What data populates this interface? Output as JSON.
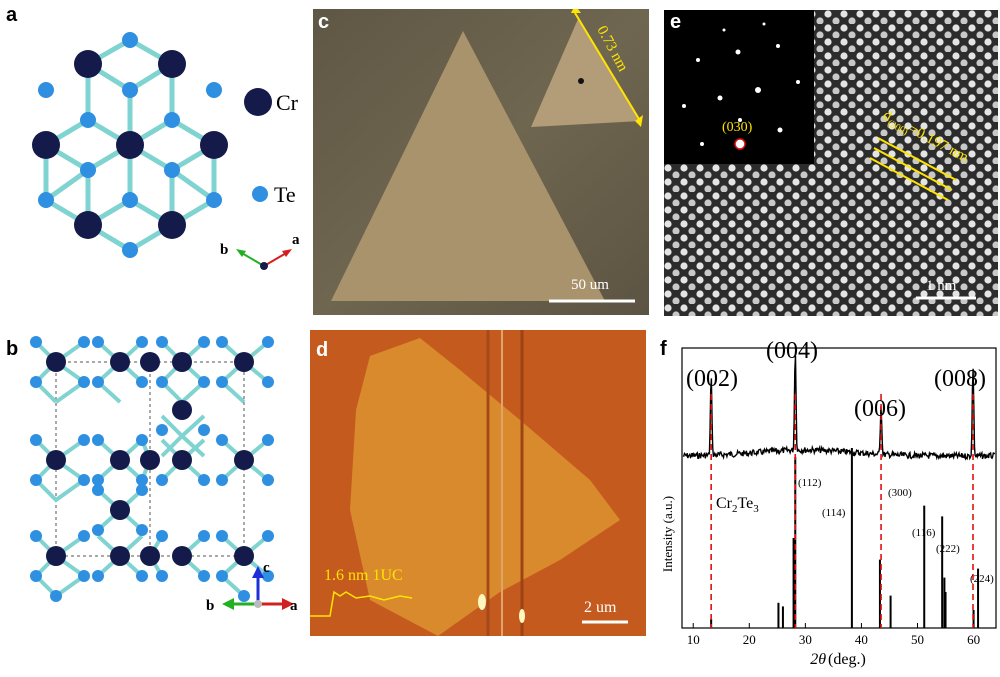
{
  "figure": {
    "panel_labels": {
      "a": "a",
      "b": "b",
      "c": "c",
      "d": "d",
      "e": "e",
      "f": "f"
    },
    "a": {
      "legend_cr": "Cr",
      "legend_te": "Te",
      "axis_b": "b",
      "axis_a": "a"
    },
    "b": {
      "axis_c": "c",
      "axis_b": "b",
      "axis_a": "a"
    },
    "c": {
      "thickness": "0.73 nm",
      "scalebar": "50 um"
    },
    "d": {
      "profile_label": "1.6 nm 1UC",
      "scalebar": "2 um"
    },
    "e": {
      "spot_label": "(030)",
      "d_spacing_d": "d",
      "d_spacing_sub": "(300)",
      "d_spacing_val": "=0.197 nm",
      "scalebar": "1 nm"
    },
    "f": {
      "peaks": [
        "(002)",
        "(004)",
        "(006)",
        "(008)"
      ],
      "ref_label_main": "Cr",
      "ref_label_sub1": "2",
      "ref_label_mid": "Te",
      "ref_label_sub2": "3",
      "ref_peaks": [
        "(112)",
        "(114)",
        "(300)",
        "(116)",
        "(222)",
        "(224)"
      ],
      "ylabel": "Intensity (a.u.)",
      "xlabel_theta": "2θ",
      "xlabel_unit": "(deg.)",
      "xticks": [
        "10",
        "20",
        "30",
        "40",
        "50",
        "60"
      ]
    }
  },
  "colors": {
    "cr_atom": "#141a4a",
    "te_atom": "#2f8fe0",
    "bond": "#7fd3d0",
    "optical_bg": "#6f6650",
    "flake": "#a8936c",
    "afm_bg": "#c45a1e",
    "afm_flake": "#d98a2c",
    "annot_yellow": "#ffe400",
    "dashed_red": "#e01010"
  },
  "chart_data": {
    "type": "line",
    "title": "",
    "xlabel": "2θ (deg.)",
    "ylabel": "Intensity (a.u.)",
    "xlim": [
      8,
      64
    ],
    "xticks": [
      10,
      20,
      30,
      40,
      50,
      60
    ],
    "peak_positions": [
      {
        "label": "(002)",
        "x": 13.2
      },
      {
        "label": "(004)",
        "x": 28.2
      },
      {
        "label": "(006)",
        "x": 43.5
      },
      {
        "label": "(008)",
        "x": 59.9
      }
    ],
    "reference_sticks": {
      "label": "Cr2Te3",
      "x": [
        13.2,
        25.2,
        26.0,
        27.9,
        28.2,
        38.3,
        43.3,
        45.2,
        51.2,
        54.4,
        54.8,
        55.0,
        60.0,
        60.8
      ],
      "relative_intensity": [
        0.05,
        0.14,
        0.12,
        0.5,
        0.95,
        1.0,
        0.38,
        0.18,
        0.68,
        0.62,
        0.28,
        0.2,
        0.1,
        0.33
      ]
    }
  }
}
